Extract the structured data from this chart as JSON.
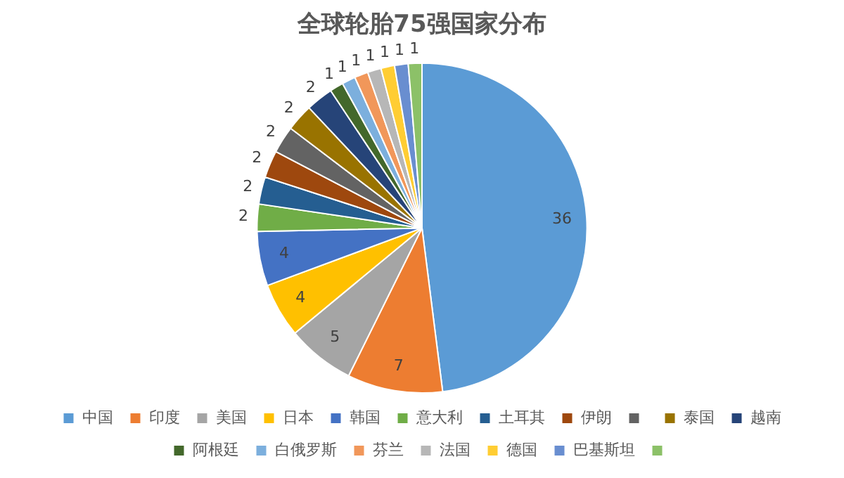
{
  "chart_data": {
    "type": "pie",
    "title": "全球轮胎75强国家分布",
    "categories": [
      "中国",
      "印度",
      "美国",
      "日本",
      "韩国",
      "意大利",
      "土耳其",
      "伊朗",
      null,
      "泰国",
      "越南",
      "阿根廷",
      "白俄罗斯",
      "芬兰",
      "法国",
      "德国",
      "巴基斯坦",
      null
    ],
    "values": [
      36,
      7,
      5,
      4,
      4,
      2,
      2,
      2,
      2,
      2,
      2,
      1,
      1,
      1,
      1,
      1,
      1,
      1
    ],
    "colors": [
      "#5b9bd5",
      "#ed7d31",
      "#a5a5a5",
      "#ffc000",
      "#4472c4",
      "#70ad47",
      "#255e91",
      "#9e480e",
      "#636363",
      "#997300",
      "#264478",
      "#43682b",
      "#7cafdd",
      "#f1975a",
      "#b7b7b7",
      "#ffcd33",
      "#698ed0",
      "#8cc168"
    ],
    "data_labels": true,
    "legend": "bottom"
  }
}
